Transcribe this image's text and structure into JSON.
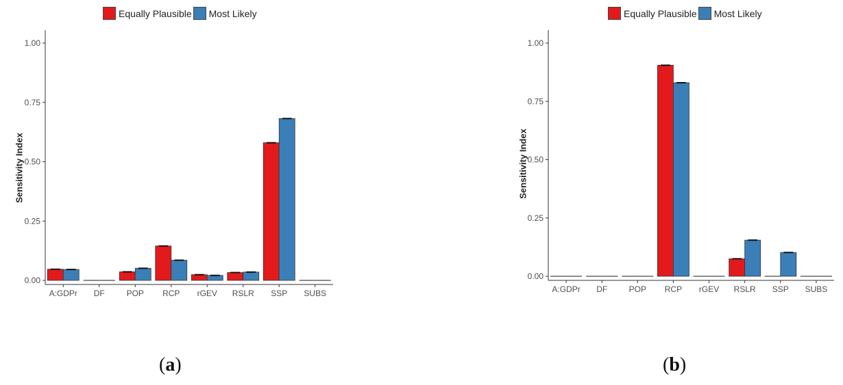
{
  "colors": {
    "equally_plausible": "#e31a1c",
    "most_likely": "#3a7fb8"
  },
  "chart_data": [
    {
      "type": "bar",
      "caption_letter": "a",
      "ylabel": "Sensitivity Index",
      "ylim": [
        0,
        1.0
      ],
      "yticks": [
        "0.00",
        "0.25",
        "0.50",
        "0.75",
        "1.00"
      ],
      "categories": [
        "A:GDPr",
        "DF",
        "POP",
        "RCP",
        "rGEV",
        "RSLR",
        "SSP",
        "SUBS"
      ],
      "legend_position": "top",
      "series": [
        {
          "name": "Equally Plausible",
          "values": [
            0.047,
            0.0,
            0.036,
            0.145,
            0.024,
            0.033,
            0.58,
            0.003
          ]
        },
        {
          "name": "Most Likely",
          "values": [
            0.046,
            0.0,
            0.051,
            0.085,
            0.021,
            0.035,
            0.682,
            0.0
          ]
        }
      ]
    },
    {
      "type": "bar",
      "caption_letter": "b",
      "ylabel": "Sensitivity Index",
      "ylim": [
        0,
        1.0
      ],
      "yticks": [
        "0.00",
        "0.25",
        "0.50",
        "0.75",
        "1.00"
      ],
      "categories": [
        "A:GDPr",
        "DF",
        "POP",
        "RCP",
        "rGEV",
        "RSLR",
        "SSP",
        "SUBS"
      ],
      "legend_position": "top",
      "series": [
        {
          "name": "Equally Plausible",
          "values": [
            0.0,
            0.0,
            0.0,
            0.905,
            0.001,
            0.075,
            0.0,
            0.0
          ]
        },
        {
          "name": "Most Likely",
          "values": [
            0.0,
            0.0,
            0.001,
            0.83,
            0.0,
            0.155,
            0.102,
            0.0
          ]
        }
      ]
    }
  ]
}
